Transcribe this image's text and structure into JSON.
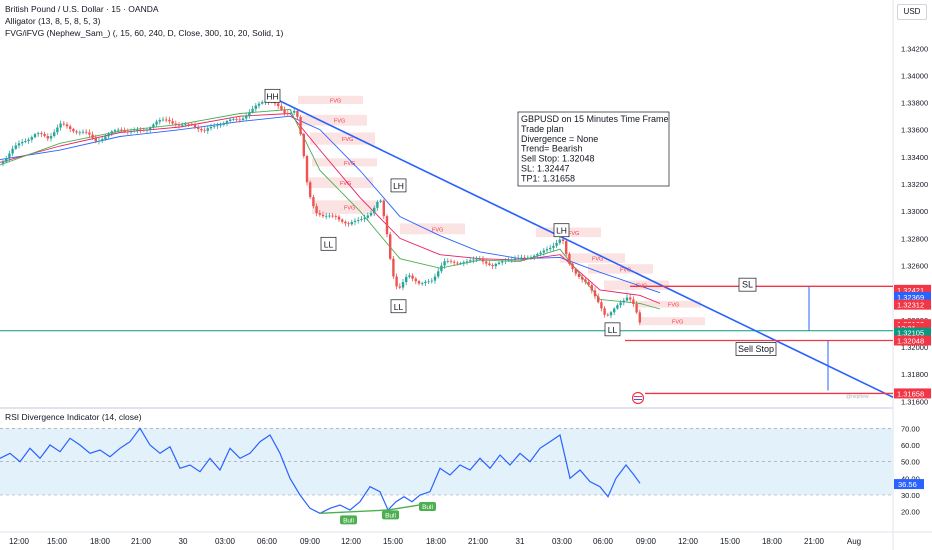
{
  "header": {
    "symbol": "British Pound / U.S. Dollar · 15 · OANDA",
    "indicator_1": "Alligator (13, 8, 5, 8, 5, 3)",
    "indicator_2": "FVG/iFVG (Nephew_Sam_) (, 15, 60, 240, D, Close, 300, 10, 20, Solid, 1)",
    "currency": "USD"
  },
  "rsi_header": "RSI Divergence Indicator (14, close)",
  "colors": {
    "up": "#26a69a",
    "down": "#ef5350",
    "trend": "#2962ff",
    "level_red": "#f23645",
    "level_green": "#089981",
    "rsi_band": "#e3f1fb",
    "rsi_line": "#2962ff",
    "bull": "#4caf50",
    "fvg": "#fbdede",
    "jaw": "#2962ff",
    "teeth": "#e91e63",
    "lips": "#4caf50"
  },
  "annotation": {
    "lines": [
      "GBPUSD on 15 Minutes Time Frame",
      "Trade plan",
      "Divergence = None",
      "Trend= Bearish",
      "Sell Stop: 1.32048",
      "SL: 1.32447",
      "TP1: 1.31658"
    ]
  },
  "labels": {
    "sl": "SL",
    "sell_stop": "Sell Stop",
    "fvg": "FVG",
    "bull": "Bull",
    "swings": [
      "HH",
      "LH",
      "LL",
      "LL",
      "LH",
      "LL"
    ]
  },
  "watermark": "@nephew",
  "chart_data": [
    {
      "type": "candlestick",
      "title": "British Pound / U.S. Dollar · 15 · OANDA",
      "ylim": [
        1.316,
        1.343
      ],
      "y_ticks": [
        "1.34200",
        "1.34000",
        "1.33800",
        "1.33600",
        "1.33400",
        "1.33200",
        "1.33000",
        "1.32800",
        "1.32600",
        "1.32400",
        "1.32200",
        "1.32000",
        "1.31800",
        "1.31600"
      ],
      "x_ticks": [
        "12:00",
        "15:00",
        "18:00",
        "21:00",
        "30",
        "03:00",
        "06:00",
        "09:00",
        "12:00",
        "15:00",
        "18:00",
        "21:00",
        "31",
        "03:00",
        "06:00",
        "09:00",
        "12:00",
        "15:00",
        "18:00",
        "21:00",
        "Aug"
      ],
      "price_path": [
        [
          0,
          1.3335
        ],
        [
          12,
          1.3345
        ],
        [
          24,
          1.3352
        ],
        [
          36,
          1.3357
        ],
        [
          48,
          1.3354
        ],
        [
          60,
          1.3364
        ],
        [
          72,
          1.336
        ],
        [
          84,
          1.3358
        ],
        [
          96,
          1.3352
        ],
        [
          108,
          1.3356
        ],
        [
          120,
          1.3361
        ],
        [
          132,
          1.3358
        ],
        [
          144,
          1.336
        ],
        [
          156,
          1.3365
        ],
        [
          168,
          1.3368
        ],
        [
          180,
          1.3362
        ],
        [
          192,
          1.3365
        ],
        [
          204,
          1.3358
        ],
        [
          216,
          1.3364
        ],
        [
          228,
          1.3366
        ],
        [
          240,
          1.3368
        ],
        [
          252,
          1.3374
        ],
        [
          264,
          1.3382
        ],
        [
          272,
          1.3381
        ],
        [
          284,
          1.3372
        ],
        [
          296,
          1.3375
        ],
        [
          302,
          1.335
        ],
        [
          308,
          1.3315
        ],
        [
          316,
          1.33
        ],
        [
          324,
          1.3295
        ],
        [
          336,
          1.3297
        ],
        [
          348,
          1.3289
        ],
        [
          360,
          1.3295
        ],
        [
          372,
          1.3298
        ],
        [
          380,
          1.331
        ],
        [
          386,
          1.329
        ],
        [
          392,
          1.3255
        ],
        [
          398,
          1.324
        ],
        [
          408,
          1.3255
        ],
        [
          420,
          1.3245
        ],
        [
          432,
          1.325
        ],
        [
          444,
          1.3262
        ],
        [
          456,
          1.3263
        ],
        [
          468,
          1.3262
        ],
        [
          480,
          1.3266
        ],
        [
          492,
          1.3258
        ],
        [
          504,
          1.3265
        ],
        [
          516,
          1.3264
        ],
        [
          528,
          1.3267
        ],
        [
          540,
          1.3268
        ],
        [
          552,
          1.3275
        ],
        [
          562,
          1.328
        ],
        [
          568,
          1.3262
        ],
        [
          576,
          1.3255
        ],
        [
          588,
          1.3245
        ],
        [
          600,
          1.3232
        ],
        [
          606,
          1.3222
        ],
        [
          612,
          1.3225
        ],
        [
          620,
          1.3233
        ],
        [
          628,
          1.3238
        ],
        [
          634,
          1.323
        ],
        [
          640,
          1.32168
        ]
      ],
      "jaw_path": [
        [
          0,
          1.3338
        ],
        [
          60,
          1.3345
        ],
        [
          120,
          1.3355
        ],
        [
          180,
          1.336
        ],
        [
          240,
          1.3366
        ],
        [
          290,
          1.337
        ],
        [
          320,
          1.336
        ],
        [
          360,
          1.333
        ],
        [
          400,
          1.3296
        ],
        [
          440,
          1.3282
        ],
        [
          480,
          1.327
        ],
        [
          520,
          1.3265
        ],
        [
          560,
          1.3266
        ],
        [
          600,
          1.3255
        ],
        [
          640,
          1.3245
        ],
        [
          660,
          1.324
        ]
      ],
      "teeth_path": [
        [
          0,
          1.3336
        ],
        [
          60,
          1.3348
        ],
        [
          120,
          1.3358
        ],
        [
          180,
          1.3362
        ],
        [
          240,
          1.337
        ],
        [
          290,
          1.3372
        ],
        [
          320,
          1.3345
        ],
        [
          360,
          1.331
        ],
        [
          400,
          1.328
        ],
        [
          440,
          1.3268
        ],
        [
          480,
          1.3265
        ],
        [
          520,
          1.3264
        ],
        [
          560,
          1.3268
        ],
        [
          600,
          1.3242
        ],
        [
          640,
          1.3238
        ],
        [
          660,
          1.3232
        ]
      ],
      "lips_path": [
        [
          0,
          1.3334
        ],
        [
          60,
          1.335
        ],
        [
          120,
          1.3359
        ],
        [
          180,
          1.3364
        ],
        [
          240,
          1.3372
        ],
        [
          290,
          1.3375
        ],
        [
          320,
          1.333
        ],
        [
          360,
          1.33
        ],
        [
          400,
          1.3265
        ],
        [
          440,
          1.3258
        ],
        [
          480,
          1.3264
        ],
        [
          520,
          1.3263
        ],
        [
          560,
          1.3272
        ],
        [
          600,
          1.3235
        ],
        [
          640,
          1.3232
        ],
        [
          660,
          1.3228
        ]
      ],
      "trendline": [
        [
          272,
          1.3384
        ],
        [
          893,
          1.3163
        ]
      ],
      "horizontal_line": 1.3212,
      "levels": [
        {
          "label": "SL",
          "value": 1.32447,
          "color": "level_red"
        },
        {
          "label": "Sell Stop",
          "value": 1.32048,
          "color": "level_red"
        },
        {
          "label": "TP1",
          "value": 1.31658,
          "color": "level_red"
        }
      ],
      "price_labels": [
        {
          "text": "1.32421",
          "value": 1.32421,
          "color": "#f23645"
        },
        {
          "text": "1.32369",
          "value": 1.32369,
          "color": "#2962ff"
        },
        {
          "text": "1.32312",
          "value": 1.32312,
          "color": "#f23645"
        },
        {
          "text": "1.32168",
          "value": 1.32168,
          "color": "#f23645"
        },
        {
          "text": "13:21",
          "value": 1.3214,
          "color": "#f23645"
        },
        {
          "text": "1.32105",
          "value": 1.32105,
          "color": "#089981"
        },
        {
          "text": "1.32048",
          "value": 1.32048,
          "color": "#f23645"
        },
        {
          "text": "1.31658",
          "value": 1.31658,
          "color": "#f23645"
        }
      ],
      "swing_points": [
        {
          "label": "HH",
          "x": 272,
          "value": 1.3385
        },
        {
          "label": "LH",
          "x": 398,
          "value": 1.3319
        },
        {
          "label": "LL",
          "x": 328,
          "value": 1.3276
        },
        {
          "label": "LL",
          "x": 398,
          "value": 1.323
        },
        {
          "label": "LH",
          "x": 561,
          "value": 1.3286
        },
        {
          "label": "LL",
          "x": 612,
          "value": 1.3213
        }
      ],
      "fvg_zones": [
        [
          298,
          1.3385,
          1.3379
        ],
        [
          302,
          1.3371,
          1.3363
        ],
        [
          310,
          1.3358,
          1.3349
        ],
        [
          312,
          1.3339,
          1.3333
        ],
        [
          308,
          1.3325,
          1.3317
        ],
        [
          312,
          1.3308,
          1.3298
        ],
        [
          400,
          1.3291,
          1.3283
        ],
        [
          536,
          1.3288,
          1.3281
        ],
        [
          560,
          1.3269,
          1.3262
        ],
        [
          588,
          1.3261,
          1.3254
        ],
        [
          604,
          1.3249,
          1.3242
        ],
        [
          636,
          1.3234,
          1.3229
        ],
        [
          640,
          1.3222,
          1.3216
        ]
      ]
    },
    {
      "type": "line",
      "title": "RSI Divergence Indicator (14, close)",
      "ylim": [
        15,
        75
      ],
      "band": [
        30,
        70
      ],
      "y_ticks": [
        "70.00",
        "60.00",
        "50.00",
        "40.00",
        "30.00",
        "20.00"
      ],
      "current_value": "36.56",
      "values": [
        [
          0,
          52
        ],
        [
          10,
          55
        ],
        [
          20,
          50
        ],
        [
          30,
          58
        ],
        [
          40,
          52
        ],
        [
          50,
          60
        ],
        [
          60,
          56
        ],
        [
          70,
          64
        ],
        [
          80,
          60
        ],
        [
          90,
          55
        ],
        [
          100,
          57
        ],
        [
          110,
          53
        ],
        [
          120,
          58
        ],
        [
          130,
          62
        ],
        [
          140,
          70
        ],
        [
          150,
          60
        ],
        [
          160,
          55
        ],
        [
          170,
          59
        ],
        [
          180,
          46
        ],
        [
          190,
          48
        ],
        [
          200,
          44
        ],
        [
          210,
          52
        ],
        [
          220,
          45
        ],
        [
          230,
          58
        ],
        [
          240,
          52
        ],
        [
          250,
          55
        ],
        [
          260,
          62
        ],
        [
          270,
          66
        ],
        [
          280,
          55
        ],
        [
          290,
          40
        ],
        [
          300,
          30
        ],
        [
          310,
          22
        ],
        [
          320,
          19
        ],
        [
          330,
          22
        ],
        [
          340,
          24
        ],
        [
          350,
          21
        ],
        [
          360,
          26
        ],
        [
          370,
          35
        ],
        [
          380,
          32
        ],
        [
          388,
          21
        ],
        [
          396,
          26
        ],
        [
          404,
          29
        ],
        [
          412,
          26
        ],
        [
          420,
          30
        ],
        [
          430,
          32
        ],
        [
          440,
          46
        ],
        [
          450,
          42
        ],
        [
          460,
          48
        ],
        [
          470,
          45
        ],
        [
          480,
          52
        ],
        [
          490,
          46
        ],
        [
          500,
          54
        ],
        [
          510,
          48
        ],
        [
          520,
          55
        ],
        [
          530,
          50
        ],
        [
          540,
          58
        ],
        [
          550,
          62
        ],
        [
          560,
          66
        ],
        [
          570,
          40
        ],
        [
          580,
          45
        ],
        [
          590,
          38
        ],
        [
          600,
          35
        ],
        [
          608,
          29
        ],
        [
          616,
          40
        ],
        [
          626,
          48
        ],
        [
          634,
          42
        ],
        [
          640,
          37
        ]
      ],
      "bull_labels": [
        {
          "x": 348,
          "value": 19
        },
        {
          "x": 390,
          "value": 22
        },
        {
          "x": 427,
          "value": 27
        }
      ]
    }
  ]
}
